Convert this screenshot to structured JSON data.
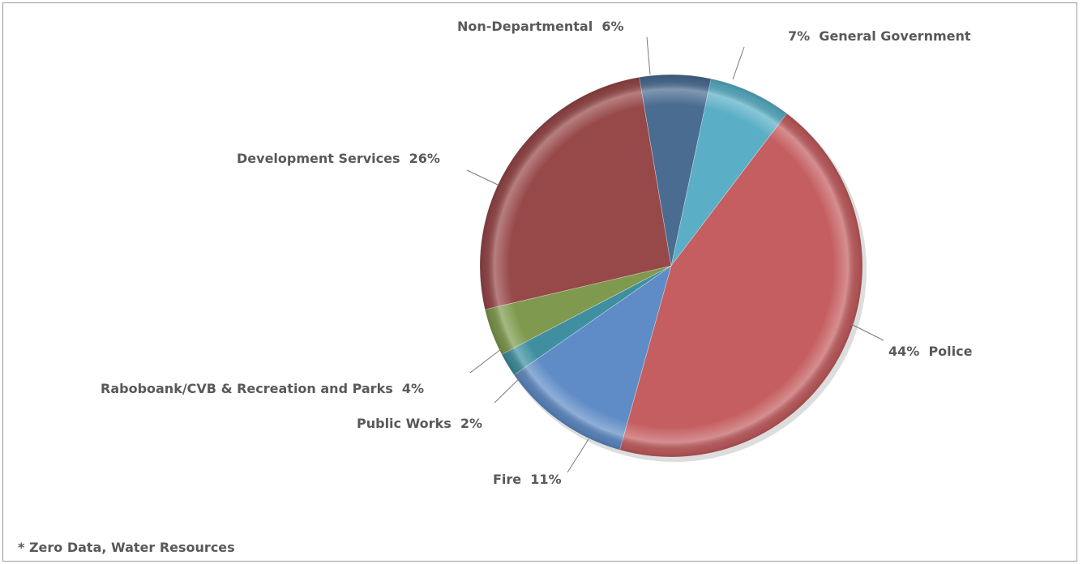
{
  "chart_data": {
    "type": "pie",
    "slices": [
      {
        "label": "General Government",
        "value": 7,
        "display": "7%",
        "color": "#5aafc6"
      },
      {
        "label": "Police",
        "value": 44,
        "display": "44%",
        "color": "#c45e60"
      },
      {
        "label": "Fire",
        "value": 11,
        "display": "11%",
        "color": "#5f8cc6"
      },
      {
        "label": "Public Works",
        "value": 2,
        "display": "2%",
        "color": "#3f8fa0"
      },
      {
        "label": "Raboboank/CVB & Recreation and Parks",
        "value": 4,
        "display": "4%",
        "color": "#7f9a4e"
      },
      {
        "label": "Development Services",
        "value": 26,
        "display": "26%",
        "color": "#974849"
      },
      {
        "label": "Non-Departmental",
        "value": 6,
        "display": "6%",
        "color": "#4a6c91"
      }
    ],
    "labels": [
      {
        "text": "7%  General Government"
      },
      {
        "text": "44%  Police"
      },
      {
        "text": "Fire  11%"
      },
      {
        "text": "Public Works  2%"
      },
      {
        "text": "Raboboank/CVB & Recreation and Parks  4%"
      },
      {
        "text": "Development Services  26%"
      },
      {
        "text": "Non-Departmental  6%"
      }
    ],
    "footnote": "* Zero Data, Water Resources"
  }
}
